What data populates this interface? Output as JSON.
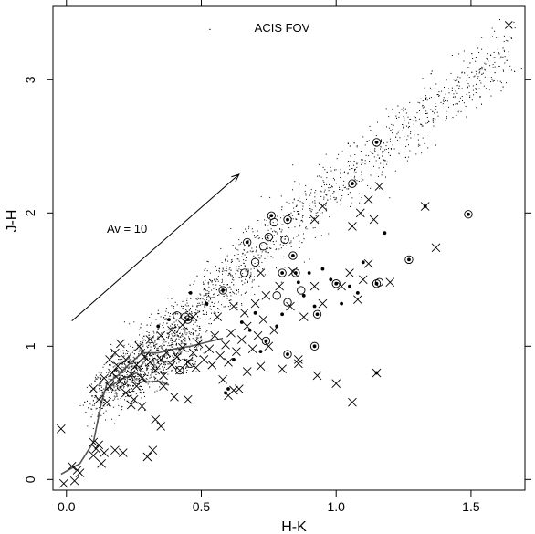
{
  "chart_data": {
    "type": "scatter",
    "title": "ACIS FOV",
    "xlabel": "H-K",
    "ylabel": "J-H",
    "xlim": [
      -0.05,
      1.7
    ],
    "ylim": [
      -0.08,
      3.55
    ],
    "x_ticks": [
      0.0,
      0.5,
      1.0,
      1.5
    ],
    "x_tick_labels": [
      "0.0",
      "0.5",
      "1.0",
      "1.5"
    ],
    "y_ticks": [
      0,
      1,
      2,
      3
    ],
    "y_tick_labels": [
      "0",
      "1",
      "2",
      "3"
    ],
    "grid": false,
    "annotations": [
      {
        "text": "Av = 10",
        "type": "reddening-vector",
        "from": [
          0.02,
          1.19
        ],
        "to": [
          0.64,
          2.29
        ]
      }
    ],
    "curves": {
      "locus_outer": [
        [
          -0.02,
          0.04
        ],
        [
          0.05,
          0.12
        ],
        [
          0.1,
          0.28
        ],
        [
          0.13,
          0.58
        ],
        [
          0.15,
          0.72
        ],
        [
          0.19,
          0.78
        ],
        [
          0.23,
          0.86
        ],
        [
          0.28,
          0.95
        ],
        [
          0.34,
          0.95
        ],
        [
          0.4,
          0.98
        ],
        [
          0.46,
          1.0
        ],
        [
          0.52,
          1.03
        ],
        [
          0.58,
          1.06
        ]
      ],
      "locus_inner": [
        [
          0.15,
          0.68
        ],
        [
          0.2,
          0.75
        ],
        [
          0.26,
          0.8
        ],
        [
          0.3,
          0.73
        ],
        [
          0.34,
          0.74
        ],
        [
          0.38,
          0.71
        ]
      ]
    },
    "series": [
      {
        "marker": "cross",
        "points": [
          [
            -0.02,
            0.38
          ],
          [
            -0.01,
            -0.03
          ],
          [
            0.02,
            0.1
          ],
          [
            0.03,
            -0.01
          ],
          [
            0.05,
            0.05
          ],
          [
            0.04,
            0.07
          ],
          [
            0.1,
            0.28
          ],
          [
            0.11,
            0.23
          ],
          [
            0.1,
            0.18
          ],
          [
            0.12,
            0.26
          ],
          [
            0.14,
            0.2
          ],
          [
            0.13,
            0.12
          ],
          [
            0.18,
            0.22
          ],
          [
            0.21,
            0.2
          ],
          [
            0.3,
            0.17
          ],
          [
            0.32,
            0.22
          ],
          [
            0.33,
            0.45
          ],
          [
            0.35,
            0.4
          ],
          [
            0.25,
            0.6
          ],
          [
            0.28,
            0.55
          ],
          [
            0.15,
            0.58
          ],
          [
            0.12,
            0.6
          ],
          [
            0.1,
            0.68
          ],
          [
            0.16,
            0.7
          ],
          [
            0.14,
            0.76
          ],
          [
            0.17,
            0.8
          ],
          [
            0.19,
            0.85
          ],
          [
            0.22,
            0.9
          ],
          [
            0.2,
            0.74
          ],
          [
            0.24,
            0.79
          ],
          [
            0.26,
            0.86
          ],
          [
            0.29,
            0.92
          ],
          [
            0.31,
            0.88
          ],
          [
            0.33,
            0.82
          ],
          [
            0.35,
            0.9
          ],
          [
            0.37,
            0.95
          ],
          [
            0.39,
            0.86
          ],
          [
            0.41,
            0.92
          ],
          [
            0.43,
            0.99
          ],
          [
            0.45,
            0.88
          ],
          [
            0.47,
            0.95
          ],
          [
            0.49,
            1.02
          ],
          [
            0.51,
            0.9
          ],
          [
            0.53,
            0.98
          ],
          [
            0.55,
            1.08
          ],
          [
            0.57,
            0.93
          ],
          [
            0.59,
            1.01
          ],
          [
            0.61,
            1.1
          ],
          [
            0.63,
            0.96
          ],
          [
            0.65,
            1.05
          ],
          [
            0.67,
            1.15
          ],
          [
            0.69,
            0.98
          ],
          [
            0.71,
            1.08
          ],
          [
            0.73,
            1.2
          ],
          [
            0.75,
            1.0
          ],
          [
            0.77,
            1.12
          ],
          [
            0.27,
            1.0
          ],
          [
            0.31,
            1.05
          ],
          [
            0.35,
            1.08
          ],
          [
            0.39,
            1.12
          ],
          [
            0.43,
            1.16
          ],
          [
            0.47,
            1.22
          ],
          [
            0.28,
            0.76
          ],
          [
            0.36,
            0.78
          ],
          [
            0.42,
            0.82
          ],
          [
            0.48,
            0.84
          ],
          [
            0.54,
            0.86
          ],
          [
            0.6,
            0.88
          ],
          [
            0.56,
            1.22
          ],
          [
            0.62,
            1.3
          ],
          [
            0.66,
            1.25
          ],
          [
            0.7,
            1.32
          ],
          [
            0.74,
            1.38
          ],
          [
            0.79,
            1.45
          ],
          [
            0.72,
            1.55
          ],
          [
            0.84,
            1.56
          ],
          [
            0.83,
            1.3
          ],
          [
            0.88,
            1.22
          ],
          [
            0.86,
            0.9
          ],
          [
            0.92,
            1.45
          ],
          [
            0.95,
            1.32
          ],
          [
            1.02,
            1.45
          ],
          [
            1.05,
            1.55
          ],
          [
            1.08,
            1.35
          ],
          [
            1.1,
            1.5
          ],
          [
            1.12,
            1.62
          ],
          [
            1.06,
            1.9
          ],
          [
            1.09,
            2.0
          ],
          [
            1.12,
            2.1
          ],
          [
            1.14,
            1.95
          ],
          [
            1.16,
            2.2
          ],
          [
            1.2,
            1.48
          ],
          [
            1.33,
            2.05
          ],
          [
            1.37,
            1.74
          ],
          [
            0.92,
            1.95
          ],
          [
            0.95,
            2.05
          ],
          [
            0.6,
            0.63
          ],
          [
            0.64,
            0.68
          ],
          [
            0.58,
            0.75
          ],
          [
            0.67,
            0.81
          ],
          [
            0.72,
            0.85
          ],
          [
            0.8,
            0.83
          ],
          [
            0.86,
            0.87
          ],
          [
            0.93,
            0.78
          ],
          [
            1.0,
            0.72
          ],
          [
            0.4,
            0.62
          ],
          [
            0.45,
            0.6
          ],
          [
            0.36,
            0.7
          ],
          [
            1.15,
            0.8
          ],
          [
            1.06,
            0.58
          ],
          [
            0.62,
            0.67
          ],
          [
            0.2,
            1.02
          ],
          [
            0.18,
            0.95
          ],
          [
            0.16,
            0.9
          ],
          [
            0.22,
            0.65
          ],
          [
            0.24,
            0.56
          ],
          [
            0.26,
            0.7
          ]
        ]
      },
      {
        "marker": "open-circle",
        "points": [
          [
            0.45,
            1.2
          ],
          [
            0.44,
            1.22
          ],
          [
            0.58,
            1.42
          ],
          [
            0.66,
            1.55
          ],
          [
            0.67,
            1.78
          ],
          [
            0.75,
            1.82
          ],
          [
            0.76,
            1.98
          ],
          [
            0.77,
            1.93
          ],
          [
            0.81,
            1.8
          ],
          [
            0.82,
            1.95
          ],
          [
            0.8,
            1.55
          ],
          [
            0.78,
            1.38
          ],
          [
            0.85,
            1.55
          ],
          [
            0.84,
            1.68
          ],
          [
            0.87,
            1.42
          ],
          [
            0.82,
            1.33
          ],
          [
            0.93,
            1.24
          ],
          [
            1.0,
            1.47
          ],
          [
            1.15,
            1.47
          ],
          [
            1.16,
            1.48
          ],
          [
            1.27,
            1.65
          ],
          [
            1.49,
            1.99
          ],
          [
            1.06,
            2.22
          ],
          [
            1.15,
            2.53
          ],
          [
            0.7,
            1.63
          ],
          [
            0.73,
            1.75
          ],
          [
            0.92,
            1.0
          ],
          [
            0.82,
            0.94
          ],
          [
            0.74,
            1.04
          ],
          [
            0.41,
            1.23
          ],
          [
            0.46,
            0.87
          ],
          [
            0.42,
            0.82
          ]
        ]
      },
      {
        "marker": "filled-dot",
        "points": [
          [
            0.45,
            1.2
          ],
          [
            0.58,
            1.42
          ],
          [
            0.67,
            1.78
          ],
          [
            0.76,
            1.98
          ],
          [
            0.82,
            1.95
          ],
          [
            0.8,
            1.55
          ],
          [
            0.85,
            1.55
          ],
          [
            0.84,
            1.68
          ],
          [
            0.93,
            1.24
          ],
          [
            1.0,
            1.47
          ],
          [
            1.15,
            1.47
          ],
          [
            1.27,
            1.65
          ],
          [
            1.49,
            1.99
          ],
          [
            1.06,
            2.22
          ],
          [
            1.15,
            2.53
          ],
          [
            0.92,
            1.0
          ],
          [
            0.82,
            0.94
          ],
          [
            0.74,
            1.04
          ],
          [
            1.33,
            2.05
          ],
          [
            1.15,
            0.8
          ],
          [
            0.86,
            1.48
          ],
          [
            0.9,
            1.55
          ],
          [
            0.95,
            1.58
          ],
          [
            0.98,
            1.5
          ],
          [
            1.05,
            1.45
          ],
          [
            1.1,
            1.63
          ],
          [
            1.18,
            1.85
          ],
          [
            0.88,
            1.38
          ],
          [
            0.92,
            1.3
          ],
          [
            0.8,
            1.24
          ],
          [
            0.7,
            1.25
          ],
          [
            0.78,
            1.15
          ],
          [
            1.02,
            1.32
          ],
          [
            1.08,
            1.4
          ],
          [
            0.6,
            0.68
          ],
          [
            0.59,
            0.65
          ],
          [
            0.65,
            1.18
          ],
          [
            0.52,
            1.32
          ],
          [
            0.46,
            1.4
          ],
          [
            0.38,
            1.2
          ],
          [
            0.34,
            1.15
          ],
          [
            0.62,
            0.9
          ],
          [
            0.72,
            0.96
          ],
          [
            0.68,
            1.12
          ]
        ]
      },
      {
        "marker": "field",
        "trend": [
          [
            0.05,
            0.45
          ],
          [
            0.25,
            0.85
          ],
          [
            0.5,
            1.3
          ],
          [
            0.75,
            1.78
          ],
          [
            1.0,
            2.22
          ],
          [
            1.25,
            2.62
          ],
          [
            1.5,
            2.98
          ],
          [
            1.65,
            3.25
          ]
        ],
        "highlight": [
          [
            1.64,
            3.41
          ],
          [
            0.53,
            3.38
          ],
          [
            1.35,
            3.05
          ]
        ]
      }
    ]
  }
}
